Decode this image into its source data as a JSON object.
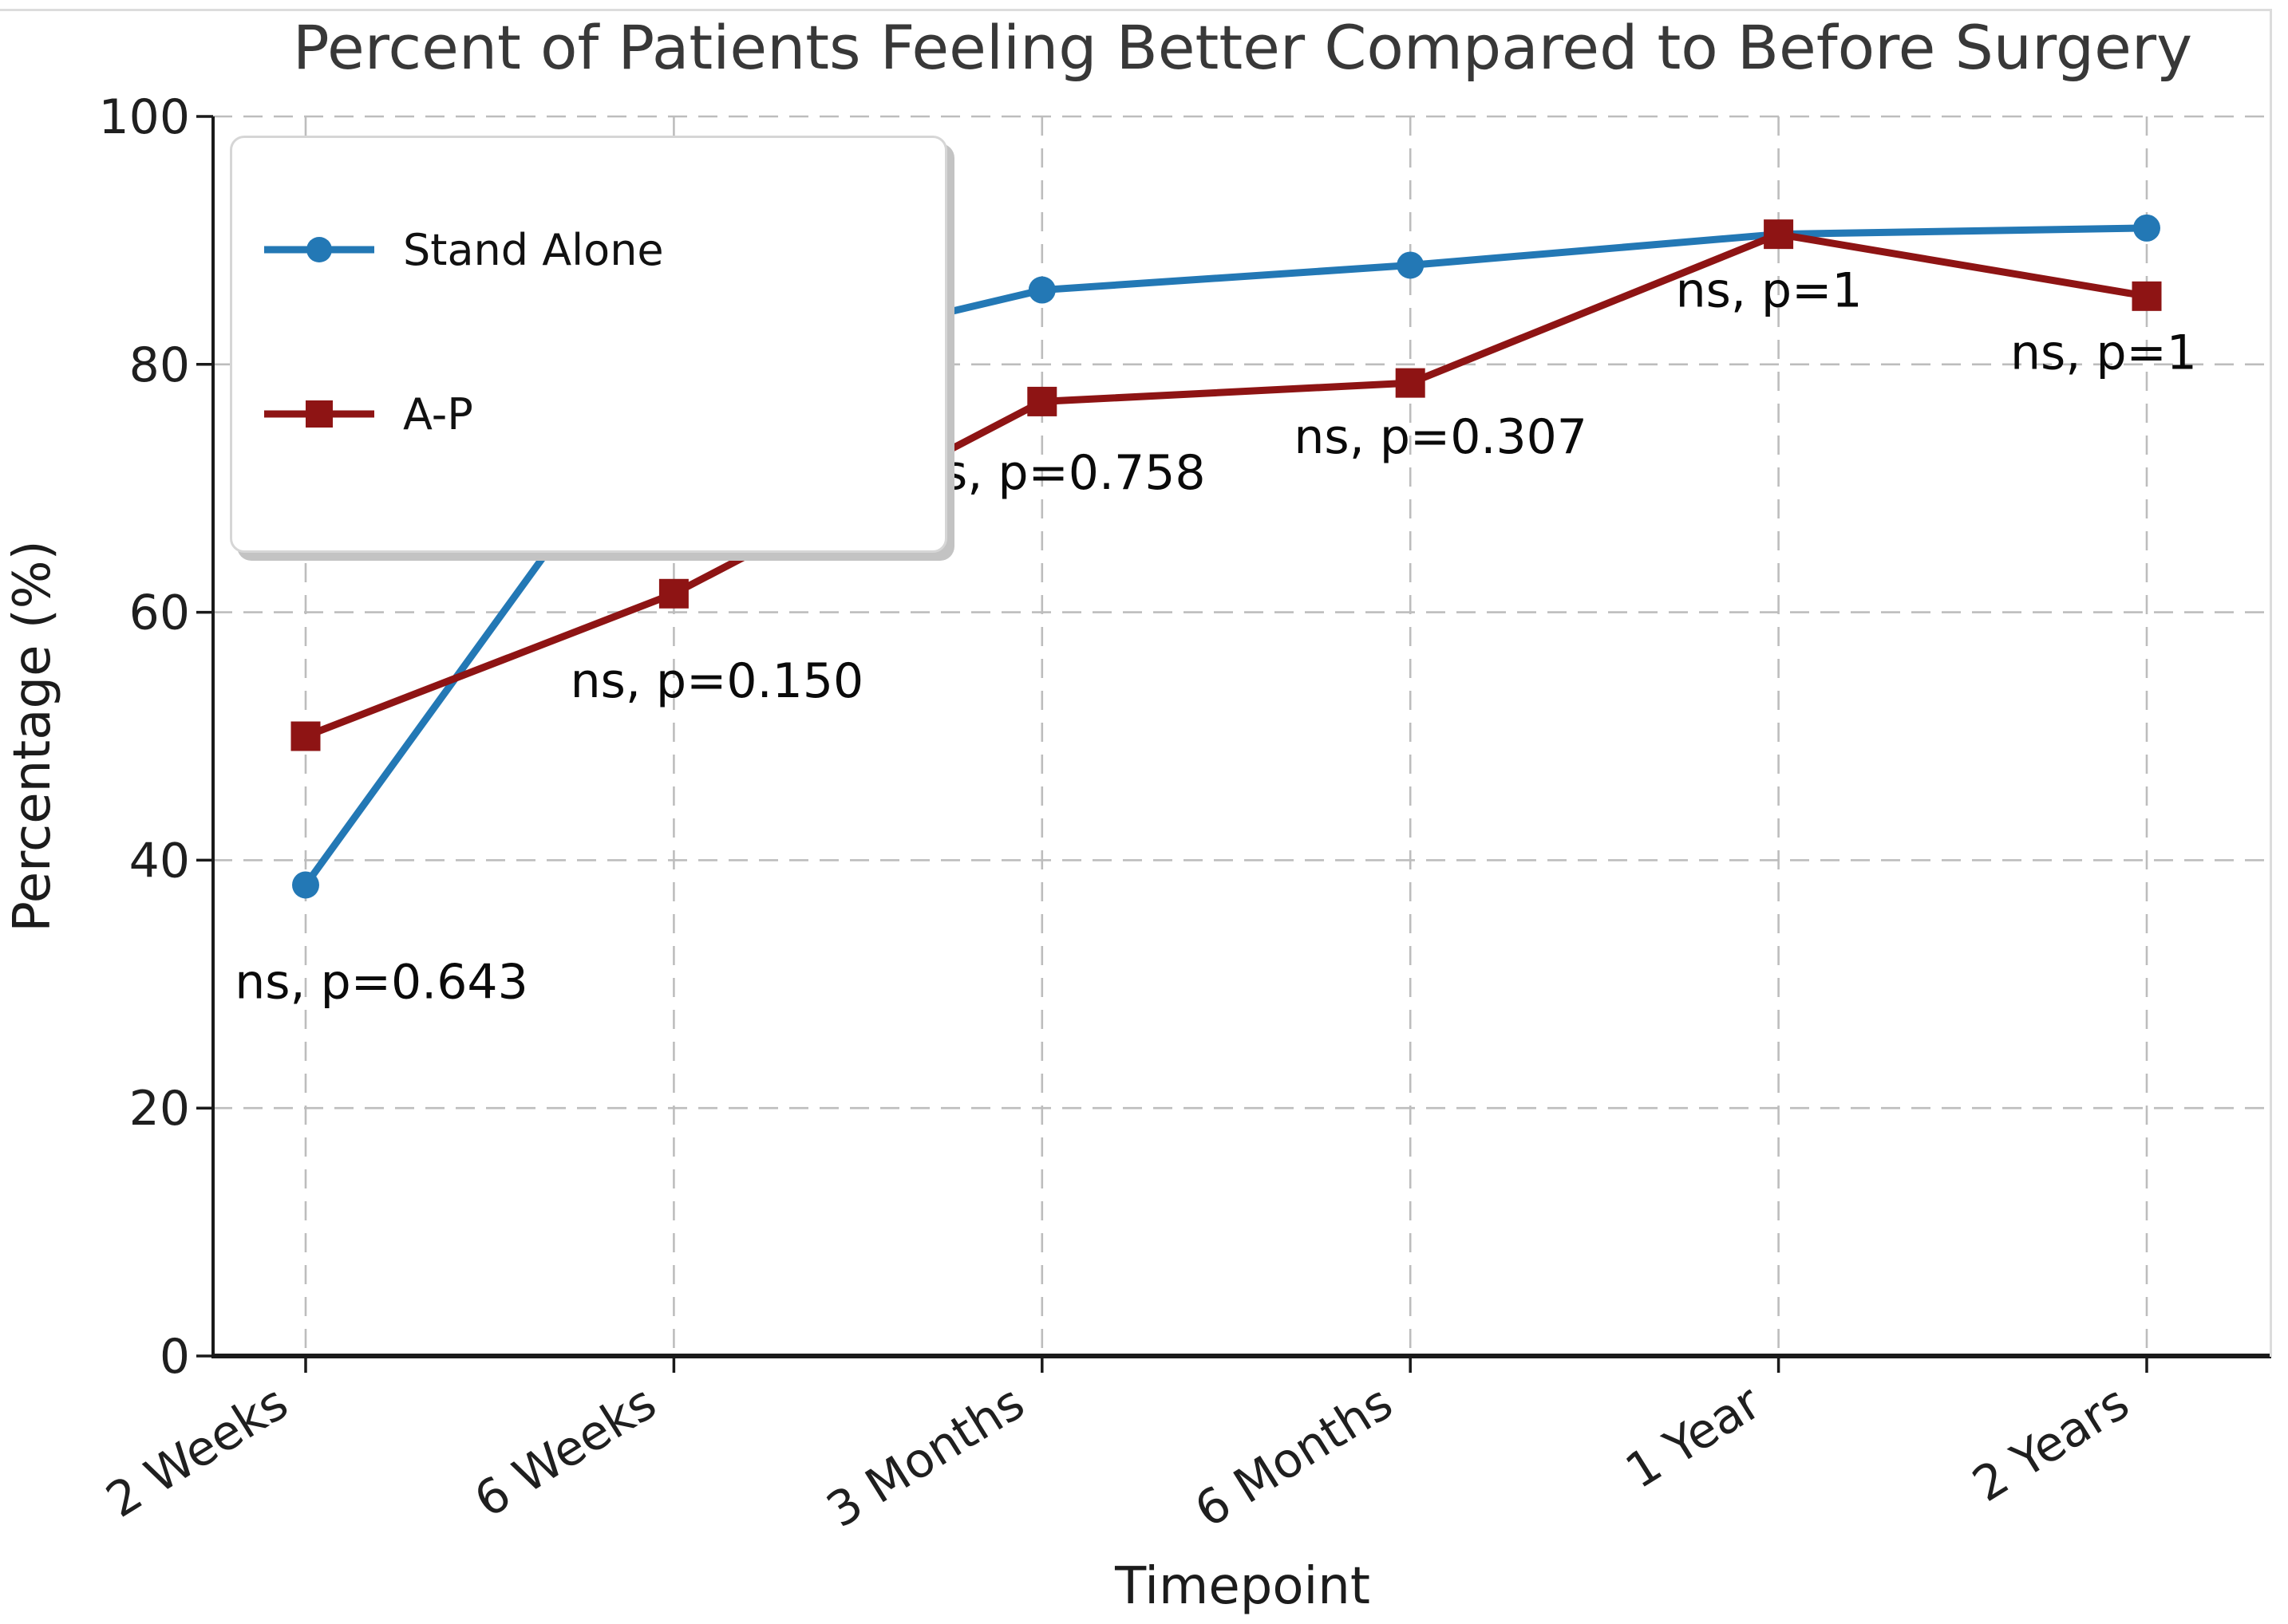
{
  "chart_data": {
    "type": "line",
    "title": "Percent of Patients Feeling Better Compared to Before Surgery",
    "xlabel": "Timepoint",
    "ylabel": "Percentage (%)",
    "categories": [
      "2 Weeks",
      "6 Weeks",
      "3 Months",
      "6 Months",
      "1 Year",
      "2 Years"
    ],
    "series": [
      {
        "name": "Stand Alone",
        "color": "#2378b5",
        "marker": "circle",
        "values": [
          38,
          79,
          86,
          88,
          90.5,
          91
        ]
      },
      {
        "name": "A-P",
        "color": "#8e1414",
        "marker": "square",
        "values": [
          50,
          61.5,
          77,
          78.5,
          90.5,
          85.5
        ]
      }
    ],
    "annotations": [
      {
        "text": "ns, p=0.643",
        "xi": 0,
        "dx": 95,
        "value": 30.2
      },
      {
        "text": "ns, p=0.150",
        "xi": 1,
        "dx": 54,
        "value": 54.5
      },
      {
        "text": "ns, p=0.758",
        "xi": 2,
        "dx": 21,
        "value": 71.3
      },
      {
        "text": "ns, p=0.307",
        "xi": 3,
        "dx": 38,
        "value": 74.2
      },
      {
        "text": "ns, p=1",
        "xi": 4,
        "dx": -12,
        "value": 86.0
      },
      {
        "text": "ns, p=1",
        "xi": 5,
        "dx": -54,
        "value": 81.0
      }
    ],
    "ylim": [
      0,
      100
    ],
    "yticks": [
      0,
      20,
      40,
      60,
      80,
      100
    ],
    "grid": true,
    "legend_position": "upper left",
    "colors": {
      "grid": "#bdbdbd",
      "spine": "#1a1a1a",
      "title": "#383838",
      "text": "#1f1f1f"
    }
  }
}
